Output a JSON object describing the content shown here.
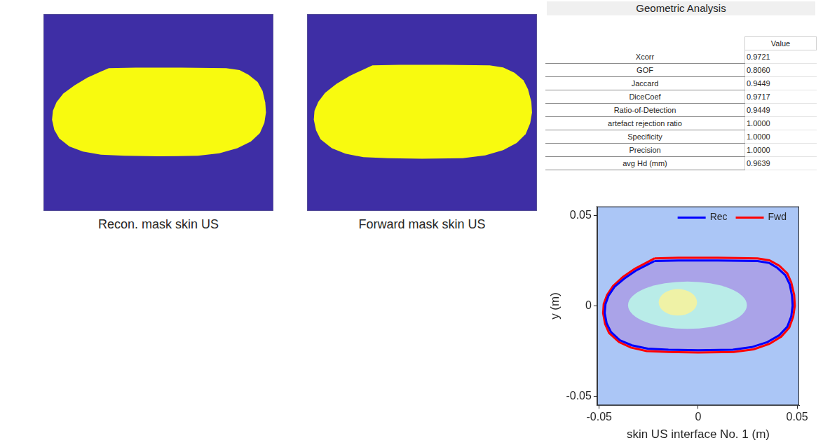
{
  "masks": [
    {
      "caption": "Recon. mask skin US",
      "series": "Rec"
    },
    {
      "caption": "Forward mask skin US",
      "series": "Fwd"
    }
  ],
  "table": {
    "title": "Geometric Analysis",
    "columns": [
      "Value"
    ],
    "rows": [
      [
        "Xcorr",
        "0.9721"
      ],
      [
        "GOF",
        "0.8060"
      ],
      [
        "Jaccard",
        "0.9449"
      ],
      [
        "DiceCoef",
        "0.9717"
      ],
      [
        "Ratio-of-Detection",
        "0.9449"
      ],
      [
        "artefact rejection ratio",
        "1.0000"
      ],
      [
        "Specificity",
        "1.0000"
      ],
      [
        "Precision",
        "1.0000"
      ],
      [
        "avg Hd (mm)",
        "0.9639"
      ]
    ]
  },
  "chart_data": {
    "type": "line",
    "x_label": "skin US interface No. 1 (m)",
    "y_label": "y (m)",
    "xlim": [
      -0.051,
      0.051
    ],
    "ylim": [
      -0.055,
      0.055
    ],
    "xticks": [
      -0.05,
      0,
      0.05
    ],
    "yticks": [
      -0.05,
      0,
      0.05
    ],
    "grid": false,
    "legend": "upper right",
    "series": [
      {
        "name": "Rec",
        "color": "#0000ff",
        "x": [
          -0.022,
          -0.01,
          0.01,
          0.03,
          0.036,
          0.04,
          0.044,
          0.0462,
          0.0474,
          0.0477,
          0.047,
          0.045,
          0.041,
          0.035,
          0.027,
          0.0175,
          0.0,
          -0.015,
          -0.0255,
          -0.0335,
          -0.0395,
          -0.044,
          -0.0462,
          -0.0472,
          -0.0468,
          -0.0452,
          -0.0422,
          -0.0372,
          -0.0315,
          -0.0258
        ],
        "values": [
          0.0248,
          0.0251,
          0.0251,
          0.0248,
          0.0237,
          0.021,
          0.017,
          0.012,
          0.0055,
          0.0,
          -0.0058,
          -0.0115,
          -0.0162,
          -0.02,
          -0.0228,
          -0.0242,
          -0.0245,
          -0.0242,
          -0.0236,
          -0.0218,
          -0.019,
          -0.0145,
          -0.0097,
          -0.004,
          0.001,
          0.0058,
          0.0106,
          0.0152,
          0.0195,
          0.0227
        ]
      },
      {
        "name": "Fwd",
        "color": "#ff0000",
        "x": [
          -0.022,
          -0.01,
          0.01,
          0.03,
          0.036,
          0.041,
          0.045,
          0.047,
          0.0485,
          0.0488,
          0.048,
          0.046,
          0.042,
          0.036,
          0.028,
          0.018,
          0.0,
          -0.015,
          -0.026,
          -0.034,
          -0.04,
          -0.045,
          -0.047,
          -0.048,
          -0.0477,
          -0.046,
          -0.043,
          -0.038,
          -0.032,
          -0.026
        ],
        "values": [
          0.0263,
          0.0266,
          0.0266,
          0.0263,
          0.0252,
          0.0222,
          0.018,
          0.013,
          0.006,
          0.0,
          -0.006,
          -0.012,
          -0.017,
          -0.021,
          -0.024,
          -0.0255,
          -0.0258,
          -0.0255,
          -0.025,
          -0.023,
          -0.02,
          -0.015,
          -0.01,
          -0.004,
          0.001,
          0.006,
          0.011,
          0.016,
          0.0205,
          0.024
        ]
      }
    ]
  }
}
